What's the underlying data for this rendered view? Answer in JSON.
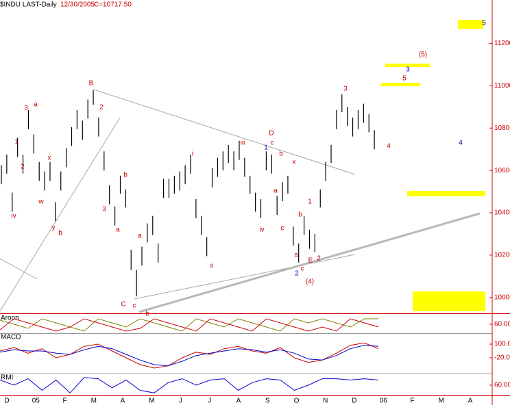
{
  "chart_data": [
    {
      "type": "ohlc",
      "title": "$INDU LAST-Daily",
      "date": "12/30/2005",
      "last": "C=10717.50",
      "categories": [
        "D",
        "05",
        "F",
        "M",
        "A",
        "M",
        "J",
        "J",
        "A",
        "S",
        "O",
        "N",
        "D",
        "06",
        "F",
        "M",
        "A"
      ],
      "ylim": [
        9925,
        11405
      ],
      "yticks": [
        10000,
        10200,
        10400,
        10600,
        10800,
        11000,
        11200
      ],
      "color": "#000000",
      "axis_color": "#cc0000",
      "highs": [
        10625,
        10675,
        10495,
        10755,
        10675,
        10885,
        10770,
        10640,
        10595,
        10640,
        10450,
        10595,
        10705,
        10805,
        10885,
        10835,
        10935,
        10980,
        10850,
        10690,
        10530,
        10430,
        10575,
        10510,
        10225,
        10130,
        10240,
        10350,
        10385,
        10255,
        10560,
        10560,
        10575,
        10595,
        10625,
        10675,
        10465,
        10385,
        10285,
        10610,
        10660,
        10690,
        10720,
        10690,
        10740,
        10660,
        10575,
        10495,
        10465,
        10690,
        10675,
        10480,
        10545,
        10575,
        10335,
        10255,
        10385,
        10320,
        10300,
        10510,
        10640,
        10720,
        10885,
        10960,
        10900,
        10850,
        10885,
        10915,
        10865,
        10790
      ],
      "lows": [
        10535,
        10585,
        10405,
        10665,
        10585,
        10795,
        10680,
        10550,
        10505,
        10550,
        10360,
        10505,
        10615,
        10715,
        10795,
        10745,
        10845,
        10910,
        10760,
        10600,
        10440,
        10340,
        10490,
        10425,
        10130,
        10005,
        10150,
        10260,
        10295,
        10165,
        10470,
        10470,
        10490,
        10505,
        10535,
        10585,
        10375,
        10295,
        10195,
        10520,
        10570,
        10600,
        10635,
        10600,
        10650,
        10570,
        10490,
        10405,
        10375,
        10600,
        10585,
        10390,
        10455,
        10490,
        10245,
        10165,
        10295,
        10230,
        10215,
        10425,
        10550,
        10635,
        10795,
        10875,
        10810,
        10760,
        10795,
        10825,
        10780,
        10700
      ],
      "annotations": [
        "3",
        "a",
        "1",
        "2",
        "x",
        "w",
        "y",
        "iv",
        "b",
        "B",
        "2",
        "3",
        "a",
        "b",
        "C",
        "c",
        "a",
        "b",
        "i",
        "ii",
        "iii",
        "iv",
        "D",
        "1",
        "c",
        "b",
        "a",
        "x",
        "c",
        "b",
        "a",
        "1",
        "2",
        "2",
        "c",
        "E",
        "(4)",
        "3",
        "4",
        "(5)",
        "3",
        "5",
        "4",
        "5"
      ]
    },
    {
      "type": "line",
      "title": "Aroon",
      "ylim": [
        0,
        100
      ],
      "yticks": [
        {
          "value": 60,
          "label": "60.00"
        }
      ],
      "series": [
        {
          "color": "#808000",
          "values": [
            90,
            60,
            30,
            100,
            70,
            40,
            10,
            100,
            70,
            40,
            100,
            70,
            40,
            10,
            100,
            70,
            40,
            100,
            70,
            40,
            10,
            100,
            70,
            100,
            70,
            40,
            100,
            100
          ]
        },
        {
          "color": "#cc0000",
          "values": [
            20,
            100,
            70,
            40,
            10,
            40,
            100,
            70,
            40,
            10,
            30,
            100,
            70,
            40,
            10,
            100,
            70,
            40,
            10,
            100,
            70,
            40,
            10,
            40,
            10,
            100,
            70,
            40
          ]
        }
      ]
    },
    {
      "type": "line",
      "title": "MACD",
      "ylim": [
        -152,
        184
      ],
      "yticks": [
        {
          "value": 100,
          "label": "100.00"
        },
        {
          "value": -20,
          "label": "-20.00"
        }
      ],
      "series": [
        {
          "color": "#cc0000",
          "values": [
            40,
            70,
            20,
            60,
            -20,
            10,
            80,
            100,
            40,
            -20,
            -80,
            -110,
            -90,
            -20,
            30,
            10,
            60,
            80,
            40,
            20,
            70,
            -20,
            -60,
            -40,
            20,
            90,
            110,
            60
          ]
        },
        {
          "color": "#0000cc",
          "values": [
            30,
            50,
            40,
            40,
            20,
            10,
            50,
            80,
            60,
            10,
            -40,
            -80,
            -90,
            -50,
            0,
            20,
            40,
            60,
            50,
            30,
            50,
            20,
            -30,
            -40,
            0,
            60,
            90,
            80
          ]
        }
      ]
    },
    {
      "type": "line",
      "title": "RMI",
      "ylim": [
        20,
        100
      ],
      "yticks": [
        {
          "value": 60,
          "label": "60.00"
        }
      ],
      "series": [
        {
          "color": "#0000cc",
          "values": [
            80,
            60,
            85,
            40,
            80,
            30,
            90,
            85,
            50,
            80,
            40,
            30,
            70,
            85,
            60,
            80,
            85,
            40,
            70,
            85,
            80,
            40,
            60,
            85,
            85,
            80,
            85,
            80
          ]
        }
      ]
    }
  ]
}
